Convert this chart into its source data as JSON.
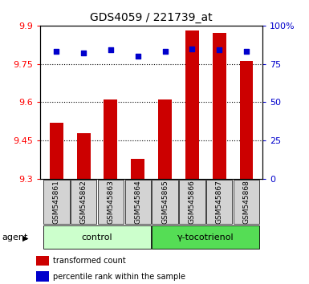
{
  "title": "GDS4059 / 221739_at",
  "samples": [
    "GSM545861",
    "GSM545862",
    "GSM545863",
    "GSM545864",
    "GSM545865",
    "GSM545866",
    "GSM545867",
    "GSM545868"
  ],
  "red_values": [
    9.52,
    9.48,
    9.61,
    9.38,
    9.61,
    9.88,
    9.87,
    9.76
  ],
  "blue_values": [
    83,
    82,
    84,
    80,
    83,
    85,
    84,
    83
  ],
  "ylim_left": [
    9.3,
    9.9
  ],
  "ylim_right": [
    0,
    100
  ],
  "yticks_left": [
    9.3,
    9.45,
    9.6,
    9.75,
    9.9
  ],
  "yticks_right": [
    0,
    25,
    50,
    75,
    100
  ],
  "ytick_labels_right": [
    "0",
    "25",
    "50",
    "75",
    "100%"
  ],
  "bar_color": "#cc0000",
  "dot_color": "#0000cc",
  "group_labels": [
    "control",
    "γ-tocotrienol"
  ],
  "group_colors": [
    "#ccffcc",
    "#55dd55"
  ],
  "agent_label": "agent",
  "legend_red": "transformed count",
  "legend_blue": "percentile rank within the sample",
  "bar_bottom": 9.3,
  "grid_lines": [
    9.45,
    9.6,
    9.75
  ]
}
